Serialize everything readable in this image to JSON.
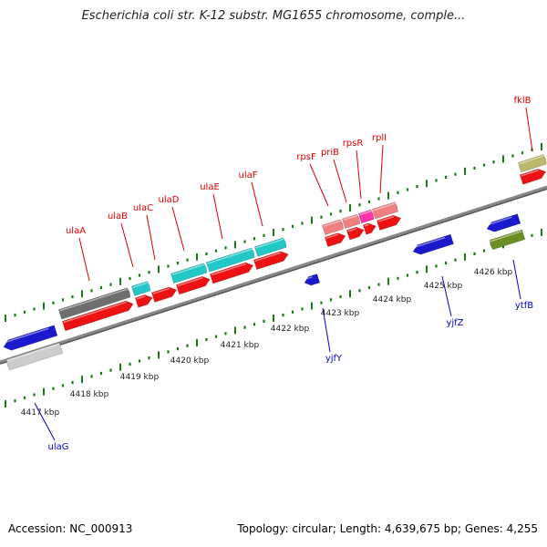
{
  "title": "Escherichia coli str. K-12 substr. MG1655 chromosome, comple...",
  "footer": {
    "accession": "Accession: NC_000913",
    "topology": "Topology: circular; Length: 4,639,675 bp; Genes: 4,255"
  },
  "colors": {
    "forward_label": "#dd0000",
    "reverse_label": "#0000cc",
    "ruler_ticks": "#1a7a1a",
    "backbone": "#888888"
  },
  "kbp_labels": [
    "4417 kbp",
    "4418 kbp",
    "4419 kbp",
    "4420 kbp",
    "4421 kbp",
    "4422 kbp",
    "4423 kbp",
    "4424 kbp",
    "4425 kbp",
    "4426 kbp"
  ],
  "forward_genes": [
    {
      "name": "ulaA",
      "color": "#6e6e6e",
      "strand": "+"
    },
    {
      "name": "ulaB",
      "color": "#22c8c8",
      "strand": "+"
    },
    {
      "name": "ulaC",
      "color": "#22c8c8",
      "strand": "+"
    },
    {
      "name": "ulaD",
      "color": "#22c8c8",
      "strand": "+"
    },
    {
      "name": "ulaE",
      "color": "#22c8c8",
      "strand": "+"
    },
    {
      "name": "ulaF",
      "color": "#22c8c8",
      "strand": "+"
    },
    {
      "name": "rpsF",
      "color": "#f08080",
      "strand": "+"
    },
    {
      "name": "priB",
      "color": "#f08080",
      "strand": "+"
    },
    {
      "name": "rpsR",
      "color": "#ff33aa",
      "strand": "+"
    },
    {
      "name": "rplI",
      "color": "#f08080",
      "strand": "+"
    },
    {
      "name": "fklB",
      "color": "#bdb76b",
      "strand": "+"
    }
  ],
  "reverse_genes": [
    {
      "name": "ulaG",
      "color": "#cccccc",
      "strand": "-"
    },
    {
      "name": "yjfY",
      "color": "#1a1acc",
      "strand": "-"
    },
    {
      "name": "yjfZ",
      "color": "#1a1acc",
      "strand": "-"
    },
    {
      "name": "ytfB",
      "color": "#6b8e23",
      "strand": "-"
    }
  ]
}
